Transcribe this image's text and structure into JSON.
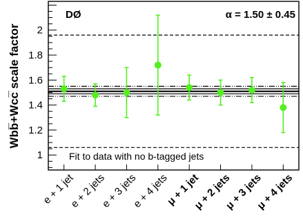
{
  "chart_data": {
    "type": "scatter",
    "ylabel": "Wbb̅+Wcc̅ scale factor",
    "ylim": [
      0.88,
      2.23
    ],
    "yticks": [
      "1",
      "1.2",
      "1.4",
      "1.6",
      "1.8",
      "2"
    ],
    "experiment_label": "DØ",
    "alpha_label": "α = 1.50 ± 0.45",
    "note": "Fit to data with no b-tagged jets",
    "categories": [
      "e + 1 jet",
      "e + 2 jets",
      "e + 3 jets",
      "e + 4 jets",
      "μ + 1 jet",
      "μ + 2 jets",
      "μ + 3 jets",
      "μ + 4 jets"
    ],
    "points": [
      {
        "value": 1.53,
        "err_low": 0.1,
        "err_high": 0.1
      },
      {
        "value": 1.48,
        "err_low": 0.09,
        "err_high": 0.09
      },
      {
        "value": 1.5,
        "err_low": 0.2,
        "err_high": 0.2
      },
      {
        "value": 1.72,
        "err_low": 0.4,
        "err_high": 0.4
      },
      {
        "value": 1.54,
        "err_low": 0.1,
        "err_high": 0.1
      },
      {
        "value": 1.5,
        "err_low": 0.1,
        "err_high": 0.1
      },
      {
        "value": 1.52,
        "err_low": 0.1,
        "err_high": 0.1
      },
      {
        "value": 1.38,
        "err_low": 0.2,
        "err_high": 0.2
      }
    ],
    "central_value": 1.51,
    "inner_band": [
      1.49,
      1.53
    ],
    "fit_band": [
      1.47,
      1.55
    ],
    "outer_band": [
      1.06,
      1.96
    ],
    "marker_color": "#55ee22",
    "line_color": "#000000"
  }
}
